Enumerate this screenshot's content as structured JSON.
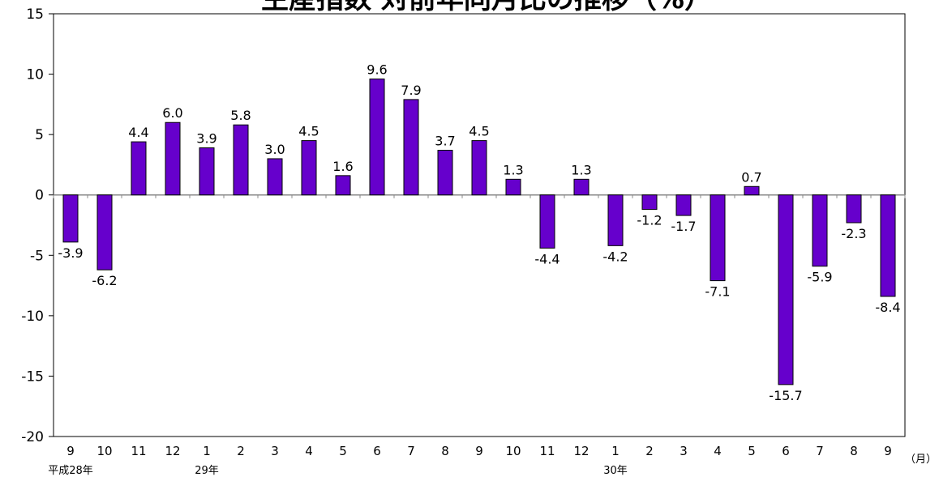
{
  "chart_data": {
    "type": "bar",
    "title": "生産指数 対前年同月比の推移（%）",
    "xlabel": "",
    "ylabel": "",
    "unit_label": "（月）",
    "ylim": [
      -20,
      15
    ],
    "yticks": [
      15,
      10,
      5,
      0,
      -5,
      -10,
      -15,
      -20
    ],
    "categories": [
      "9",
      "10",
      "11",
      "12",
      "1",
      "2",
      "3",
      "4",
      "5",
      "6",
      "7",
      "8",
      "9",
      "10",
      "11",
      "12",
      "1",
      "2",
      "3",
      "4",
      "5",
      "6",
      "7",
      "8",
      "9"
    ],
    "values": [
      -3.9,
      -6.2,
      4.4,
      6.0,
      3.9,
      5.8,
      3.0,
      4.5,
      1.6,
      9.6,
      7.9,
      3.7,
      4.5,
      1.3,
      -4.4,
      1.3,
      -4.2,
      -1.2,
      -1.7,
      -7.1,
      0.7,
      -15.7,
      -5.9,
      -2.3,
      -8.4
    ],
    "data_labels": [
      "-3.9",
      "-6.2",
      "4.4",
      "6.0",
      "3.9",
      "5.8",
      "3.0",
      "4.5",
      "1.6",
      "9.6",
      "7.9",
      "3.7",
      "4.5",
      "1.3",
      "-4.4",
      "1.3",
      "-4.2",
      "-1.2",
      "-1.7",
      "-7.1",
      "0.7",
      "-15.7",
      "-5.9",
      "-2.3",
      "-8.4"
    ],
    "group_labels": [
      {
        "index": 0,
        "label": "平成28年"
      },
      {
        "index": 4,
        "label": "29年"
      },
      {
        "index": 16,
        "label": "30年"
      }
    ],
    "bar_color": "#6600cc",
    "bar_stroke": "#000000",
    "grid": false,
    "legend": "none"
  }
}
